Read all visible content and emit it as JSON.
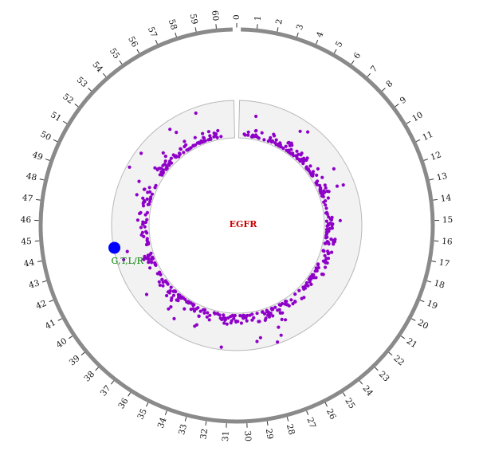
{
  "gene": {
    "name": "EGFR",
    "color": "#cc0000"
  },
  "ruler": {
    "min": 0,
    "max": 61,
    "ticks": [
      "0",
      "1",
      "2",
      "3",
      "4",
      "5",
      "6",
      "7",
      "8",
      "9",
      "10",
      "11",
      "12",
      "13",
      "14",
      "15",
      "16",
      "17",
      "18",
      "19",
      "20",
      "21",
      "22",
      "23",
      "24",
      "25",
      "26",
      "27",
      "28",
      "29",
      "30",
      "31",
      "32",
      "33",
      "34",
      "35",
      "36",
      "37",
      "38",
      "39",
      "40",
      "41",
      "42",
      "43",
      "44",
      "45",
      "46",
      "47",
      "48",
      "49",
      "50",
      "51",
      "52",
      "53",
      "54",
      "55",
      "56",
      "57",
      "58",
      "59",
      "60"
    ],
    "ring_color": "#8a8a8a"
  },
  "track": {
    "fill": "#f2f2f2",
    "stroke": "#b8b8b8"
  },
  "mutation": {
    "label": "G,T,L/R",
    "position": 44,
    "marker_color": "#0000ff",
    "label_color": "#008000"
  },
  "scatter": {
    "color": "#8e00c8"
  }
}
